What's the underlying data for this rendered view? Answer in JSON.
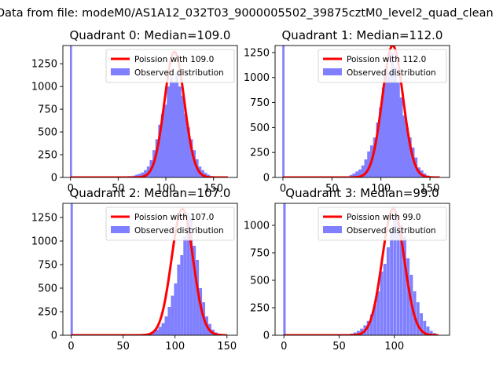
{
  "figure": {
    "suptitle": "Data from file: modeM0/AS1A12_032T03_9000005502_39875cztM0_level2_quad_clean"
  },
  "chart_data": [
    {
      "type": "histogram+line",
      "title": "Quadrant 0: Median=109.0",
      "xlim": [
        -8,
        175
      ],
      "ylim": [
        0,
        1450
      ],
      "xticks": [
        0,
        50,
        100,
        150
      ],
      "yticks": [
        0,
        250,
        500,
        750,
        1000,
        1250
      ],
      "legend_position": "upper-right",
      "series": [
        {
          "name": "Poission with 109.0",
          "kind": "line",
          "color": "#ff0000",
          "mu": 109.0,
          "peak": 1380,
          "x_range": [
            0,
            165
          ]
        },
        {
          "name": "Observed distribution",
          "kind": "bars",
          "color": "#8080ff",
          "bin_width": 3.3,
          "bins": [
            [
              0,
              1450
            ],
            [
              60,
              15
            ],
            [
              65,
              20
            ],
            [
              68,
              30
            ],
            [
              71,
              40
            ],
            [
              74,
              55
            ],
            [
              77,
              80
            ],
            [
              80,
              120
            ],
            [
              83,
              190
            ],
            [
              86,
              300
            ],
            [
              89,
              420
            ],
            [
              92,
              580
            ],
            [
              95,
              700
            ],
            [
              98,
              800
            ],
            [
              101,
              1000
            ],
            [
              104,
              1100
            ],
            [
              107,
              1050
            ],
            [
              110,
              1150
            ],
            [
              113,
              1000
            ],
            [
              116,
              900
            ],
            [
              119,
              700
            ],
            [
              122,
              550
            ],
            [
              125,
              420
            ],
            [
              128,
              300
            ],
            [
              131,
              200
            ],
            [
              134,
              120
            ],
            [
              137,
              80
            ],
            [
              140,
              50
            ],
            [
              143,
              30
            ],
            [
              146,
              15
            ],
            [
              150,
              8
            ]
          ]
        }
      ]
    },
    {
      "type": "histogram+line",
      "title": "Quadrant 1: Median=112.0",
      "xlim": [
        -8,
        170
      ],
      "ylim": [
        0,
        1320
      ],
      "xticks": [
        0,
        50,
        100,
        150
      ],
      "yticks": [
        0,
        250,
        500,
        750,
        1000,
        1250
      ],
      "legend_position": "upper-right",
      "series": [
        {
          "name": "Poission with 112.0",
          "kind": "line",
          "color": "#ff0000",
          "mu": 112.0,
          "peak": 1320,
          "x_range": [
            0,
            160
          ]
        },
        {
          "name": "Observed distribution",
          "kind": "bars",
          "color": "#8080ff",
          "bin_width": 3.3,
          "bins": [
            [
              0,
              1320
            ],
            [
              68,
              25
            ],
            [
              71,
              40
            ],
            [
              74,
              60
            ],
            [
              77,
              80
            ],
            [
              80,
              120
            ],
            [
              83,
              180
            ],
            [
              86,
              260
            ],
            [
              89,
              320
            ],
            [
              92,
              400
            ],
            [
              95,
              550
            ],
            [
              98,
              700
            ],
            [
              101,
              900
            ],
            [
              104,
              1100
            ],
            [
              107,
              1050
            ],
            [
              110,
              1250
            ],
            [
              113,
              1100
            ],
            [
              116,
              950
            ],
            [
              119,
              800
            ],
            [
              122,
              620
            ],
            [
              125,
              500
            ],
            [
              128,
              400
            ],
            [
              131,
              300
            ],
            [
              134,
              200
            ],
            [
              137,
              100
            ],
            [
              140,
              70
            ],
            [
              143,
              40
            ],
            [
              146,
              20
            ]
          ]
        }
      ]
    },
    {
      "type": "histogram+line",
      "title": "Quadrant 2: Median=107.0",
      "xlim": [
        -8,
        160
      ],
      "ylim": [
        0,
        1400
      ],
      "xticks": [
        0,
        50,
        100,
        150
      ],
      "yticks": [
        0,
        250,
        500,
        750,
        1000,
        1250
      ],
      "legend_position": "upper-right",
      "series": [
        {
          "name": "Poission with 107.0",
          "kind": "line",
          "color": "#ff0000",
          "mu": 107.0,
          "peak": 1340,
          "x_range": [
            0,
            150
          ]
        },
        {
          "name": "Observed distribution",
          "kind": "bars",
          "color": "#8080ff",
          "bin_width": 3.0,
          "bins": [
            [
              0,
              1400
            ],
            [
              72,
              15
            ],
            [
              75,
              25
            ],
            [
              78,
              40
            ],
            [
              81,
              60
            ],
            [
              84,
              90
            ],
            [
              87,
              130
            ],
            [
              90,
              200
            ],
            [
              93,
              300
            ],
            [
              96,
              420
            ],
            [
              99,
              550
            ],
            [
              102,
              750
            ],
            [
              105,
              850
            ],
            [
              108,
              1050
            ],
            [
              111,
              1300
            ],
            [
              114,
              1250
            ],
            [
              117,
              950
            ],
            [
              120,
              800
            ],
            [
              123,
              500
            ],
            [
              126,
              350
            ],
            [
              129,
              200
            ],
            [
              132,
              120
            ],
            [
              135,
              60
            ],
            [
              138,
              30
            ],
            [
              141,
              15
            ]
          ]
        }
      ]
    },
    {
      "type": "histogram+line",
      "title": "Quadrant 3: Median=99.0",
      "xlim": [
        -8,
        150
      ],
      "ylim": [
        0,
        1200
      ],
      "xticks": [
        0,
        50,
        100
      ],
      "yticks": [
        0,
        250,
        500,
        750,
        1000
      ],
      "legend_position": "upper-right",
      "series": [
        {
          "name": "Poission with 99.0",
          "kind": "line",
          "color": "#ff0000",
          "mu": 99.0,
          "peak": 1150,
          "x_range": [
            0,
            140
          ]
        },
        {
          "name": "Observed distribution",
          "kind": "bars",
          "color": "#8080ff",
          "bin_width": 2.8,
          "bins": [
            [
              0,
              1200
            ],
            [
              60,
              15
            ],
            [
              63,
              25
            ],
            [
              66,
              40
            ],
            [
              69,
              60
            ],
            [
              72,
              90
            ],
            [
              75,
              130
            ],
            [
              78,
              190
            ],
            [
              81,
              280
            ],
            [
              84,
              400
            ],
            [
              87,
              580
            ],
            [
              90,
              650
            ],
            [
              93,
              800
            ],
            [
              96,
              950
            ],
            [
              99,
              1100
            ],
            [
              102,
              1050
            ],
            [
              105,
              1000
            ],
            [
              108,
              900
            ],
            [
              111,
              700
            ],
            [
              114,
              550
            ],
            [
              117,
              400
            ],
            [
              120,
              300
            ],
            [
              123,
              200
            ],
            [
              126,
              130
            ],
            [
              129,
              80
            ],
            [
              132,
              40
            ],
            [
              135,
              20
            ]
          ]
        }
      ]
    }
  ]
}
